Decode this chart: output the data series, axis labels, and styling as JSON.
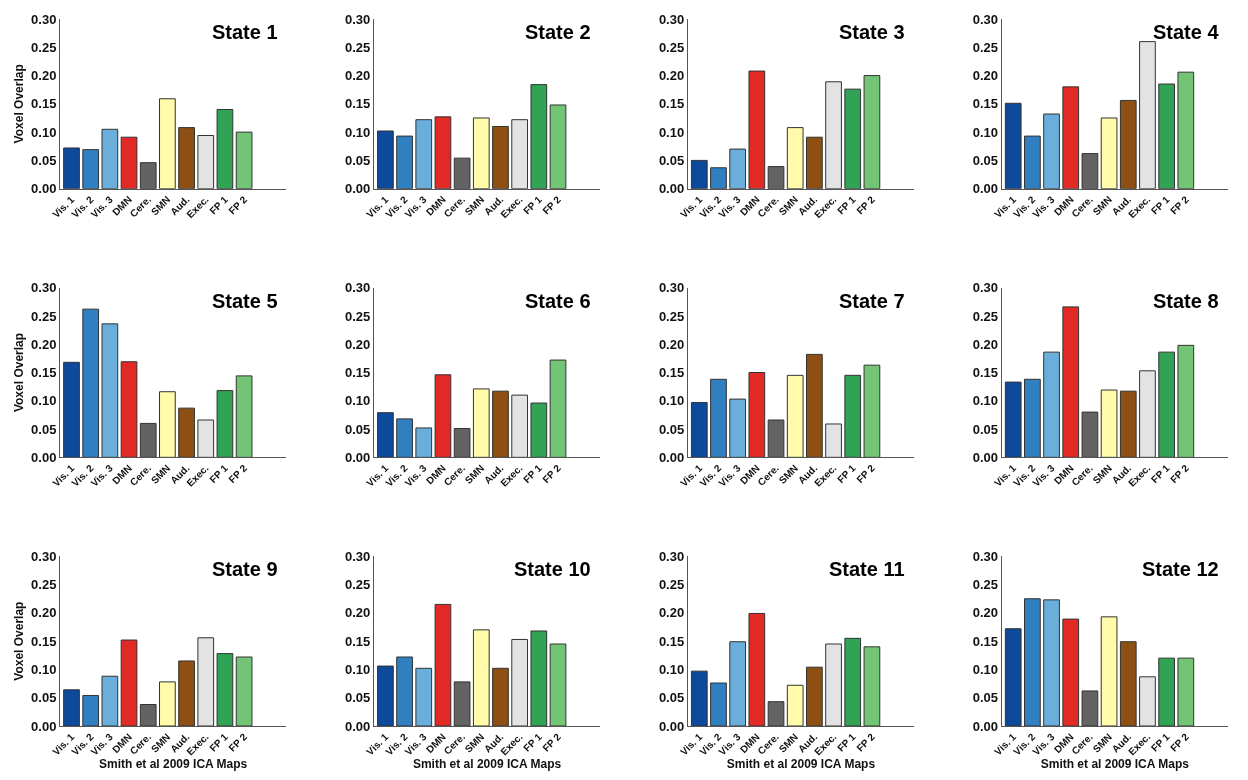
{
  "chart_data": [
    {
      "type": "bar",
      "title": "State 1",
      "ylabel": "Voxel Overlap",
      "categories": [
        "Vis. 1",
        "Vis. 2",
        "Vis. 3",
        "DMN",
        "Cere.",
        "SMN",
        "Aud.",
        "Exec.",
        "FP 1",
        "FP 2"
      ],
      "values": [
        0.072,
        0.069,
        0.105,
        0.091,
        0.046,
        0.159,
        0.108,
        0.094,
        0.14,
        0.1
      ],
      "colors": [
        "#0d4a9b",
        "#2f7fc1",
        "#6aaedc",
        "#e12a26",
        "#636363",
        "#fffbaa",
        "#8d4f12",
        "#e3e3e3",
        "#31a354",
        "#74c476"
      ],
      "ylim": [
        0,
        0.3
      ],
      "yticks": [
        {
          "value": 0,
          "label": "0.00"
        },
        {
          "value": 0.05,
          "label": "0.05"
        },
        {
          "value": 0.1,
          "label": "0.10"
        },
        {
          "value": 0.15,
          "label": "0.15"
        },
        {
          "value": 0.2,
          "label": "0.20"
        },
        {
          "value": 0.25,
          "label": "0.25"
        },
        {
          "value": 0.3,
          "label": "0.30"
        }
      ]
    },
    {
      "type": "bar",
      "title": "State 2",
      "categories": [
        "Vis. 1",
        "Vis. 2",
        "Vis. 3",
        "DMN",
        "Cere.",
        "SMN",
        "Aud.",
        "Exec.",
        "FP 1",
        "FP 2"
      ],
      "values": [
        0.102,
        0.093,
        0.122,
        0.127,
        0.054,
        0.125,
        0.11,
        0.122,
        0.184,
        0.148
      ],
      "colors": [
        "#0d4a9b",
        "#2f7fc1",
        "#6aaedc",
        "#e12a26",
        "#636363",
        "#fffbaa",
        "#8d4f12",
        "#e3e3e3",
        "#31a354",
        "#74c476"
      ],
      "ylim": [
        0,
        0.3
      ],
      "yticks": [
        {
          "value": 0,
          "label": "0.00"
        },
        {
          "value": 0.05,
          "label": "0.05"
        },
        {
          "value": 0.1,
          "label": "0.10"
        },
        {
          "value": 0.15,
          "label": "0.15"
        },
        {
          "value": 0.2,
          "label": "0.20"
        },
        {
          "value": 0.25,
          "label": "0.25"
        },
        {
          "value": 0.3,
          "label": "0.30"
        }
      ]
    },
    {
      "type": "bar",
      "title": "State 3",
      "categories": [
        "Vis. 1",
        "Vis. 2",
        "Vis. 3",
        "DMN",
        "Cere.",
        "SMN",
        "Aud.",
        "Exec.",
        "FP 1",
        "FP 2"
      ],
      "values": [
        0.05,
        0.037,
        0.07,
        0.208,
        0.039,
        0.108,
        0.091,
        0.189,
        0.176,
        0.2
      ],
      "colors": [
        "#0d4a9b",
        "#2f7fc1",
        "#6aaedc",
        "#e12a26",
        "#636363",
        "#fffbaa",
        "#8d4f12",
        "#e3e3e3",
        "#31a354",
        "#74c476"
      ],
      "ylim": [
        0,
        0.3
      ],
      "yticks": [
        {
          "value": 0,
          "label": "0.00"
        },
        {
          "value": 0.05,
          "label": "0.05"
        },
        {
          "value": 0.1,
          "label": "0.10"
        },
        {
          "value": 0.15,
          "label": "0.15"
        },
        {
          "value": 0.2,
          "label": "0.20"
        },
        {
          "value": 0.25,
          "label": "0.25"
        },
        {
          "value": 0.3,
          "label": "0.30"
        }
      ]
    },
    {
      "type": "bar",
      "title": "State 4",
      "categories": [
        "Vis. 1",
        "Vis. 2",
        "Vis. 3",
        "DMN",
        "Cere.",
        "SMN",
        "Aud.",
        "Exec.",
        "FP 1",
        "FP 2"
      ],
      "values": [
        0.151,
        0.093,
        0.132,
        0.18,
        0.062,
        0.125,
        0.156,
        0.26,
        0.185,
        0.206
      ],
      "colors": [
        "#0d4a9b",
        "#2f7fc1",
        "#6aaedc",
        "#e12a26",
        "#636363",
        "#fffbaa",
        "#8d4f12",
        "#e3e3e3",
        "#31a354",
        "#74c476"
      ],
      "ylim": [
        0,
        0.3
      ],
      "yticks": [
        {
          "value": 0,
          "label": "0.00"
        },
        {
          "value": 0.05,
          "label": "0.05"
        },
        {
          "value": 0.1,
          "label": "0.10"
        },
        {
          "value": 0.15,
          "label": "0.15"
        },
        {
          "value": 0.2,
          "label": "0.20"
        },
        {
          "value": 0.25,
          "label": "0.25"
        },
        {
          "value": 0.3,
          "label": "0.30"
        }
      ]
    },
    {
      "type": "bar",
      "title": "State 5",
      "ylabel": "Voxel Overlap",
      "categories": [
        "Vis. 1",
        "Vis. 2",
        "Vis. 3",
        "DMN",
        "Cere.",
        "SMN",
        "Aud.",
        "Exec.",
        "FP 1",
        "FP 2"
      ],
      "values": [
        0.168,
        0.262,
        0.236,
        0.169,
        0.06,
        0.116,
        0.087,
        0.066,
        0.118,
        0.144
      ],
      "colors": [
        "#0d4a9b",
        "#2f7fc1",
        "#6aaedc",
        "#e12a26",
        "#636363",
        "#fffbaa",
        "#8d4f12",
        "#e3e3e3",
        "#31a354",
        "#74c476"
      ],
      "ylim": [
        0,
        0.3
      ],
      "yticks": [
        {
          "value": 0,
          "label": "0.00"
        },
        {
          "value": 0.05,
          "label": "0.05"
        },
        {
          "value": 0.1,
          "label": "0.10"
        },
        {
          "value": 0.15,
          "label": "0.15"
        },
        {
          "value": 0.2,
          "label": "0.20"
        },
        {
          "value": 0.25,
          "label": "0.25"
        },
        {
          "value": 0.3,
          "label": "0.30"
        }
      ]
    },
    {
      "type": "bar",
      "title": "State 6",
      "categories": [
        "Vis. 1",
        "Vis. 2",
        "Vis. 3",
        "DMN",
        "Cere.",
        "SMN",
        "Aud.",
        "Exec.",
        "FP 1",
        "FP 2"
      ],
      "values": [
        0.079,
        0.068,
        0.052,
        0.146,
        0.051,
        0.121,
        0.117,
        0.11,
        0.096,
        0.172
      ],
      "colors": [
        "#0d4a9b",
        "#2f7fc1",
        "#6aaedc",
        "#e12a26",
        "#636363",
        "#fffbaa",
        "#8d4f12",
        "#e3e3e3",
        "#31a354",
        "#74c476"
      ],
      "ylim": [
        0,
        0.3
      ],
      "yticks": [
        {
          "value": 0,
          "label": "0.00"
        },
        {
          "value": 0.05,
          "label": "0.05"
        },
        {
          "value": 0.1,
          "label": "0.10"
        },
        {
          "value": 0.15,
          "label": "0.15"
        },
        {
          "value": 0.2,
          "label": "0.20"
        },
        {
          "value": 0.25,
          "label": "0.25"
        },
        {
          "value": 0.3,
          "label": "0.30"
        }
      ]
    },
    {
      "type": "bar",
      "title": "State 7",
      "categories": [
        "Vis. 1",
        "Vis. 2",
        "Vis. 3",
        "DMN",
        "Cere.",
        "SMN",
        "Aud.",
        "Exec.",
        "FP 1",
        "FP 2"
      ],
      "values": [
        0.097,
        0.138,
        0.103,
        0.15,
        0.066,
        0.145,
        0.182,
        0.059,
        0.145,
        0.163
      ],
      "colors": [
        "#0d4a9b",
        "#2f7fc1",
        "#6aaedc",
        "#e12a26",
        "#636363",
        "#fffbaa",
        "#8d4f12",
        "#e3e3e3",
        "#31a354",
        "#74c476"
      ],
      "ylim": [
        0,
        0.3
      ],
      "yticks": [
        {
          "value": 0,
          "label": "0.00"
        },
        {
          "value": 0.05,
          "label": "0.05"
        },
        {
          "value": 0.1,
          "label": "0.10"
        },
        {
          "value": 0.15,
          "label": "0.15"
        },
        {
          "value": 0.2,
          "label": "0.20"
        },
        {
          "value": 0.25,
          "label": "0.25"
        },
        {
          "value": 0.3,
          "label": "0.30"
        }
      ]
    },
    {
      "type": "bar",
      "title": "State 8",
      "categories": [
        "Vis. 1",
        "Vis. 2",
        "Vis. 3",
        "DMN",
        "Cere.",
        "SMN",
        "Aud.",
        "Exec.",
        "FP 1",
        "FP 2"
      ],
      "values": [
        0.133,
        0.138,
        0.186,
        0.266,
        0.08,
        0.119,
        0.117,
        0.153,
        0.186,
        0.198
      ],
      "colors": [
        "#0d4a9b",
        "#2f7fc1",
        "#6aaedc",
        "#e12a26",
        "#636363",
        "#fffbaa",
        "#8d4f12",
        "#e3e3e3",
        "#31a354",
        "#74c476"
      ],
      "ylim": [
        0,
        0.3
      ],
      "yticks": [
        {
          "value": 0,
          "label": "0.00"
        },
        {
          "value": 0.05,
          "label": "0.05"
        },
        {
          "value": 0.1,
          "label": "0.10"
        },
        {
          "value": 0.15,
          "label": "0.15"
        },
        {
          "value": 0.2,
          "label": "0.20"
        },
        {
          "value": 0.25,
          "label": "0.25"
        },
        {
          "value": 0.3,
          "label": "0.30"
        }
      ]
    },
    {
      "type": "bar",
      "title": "State 9",
      "ylabel": "Voxel Overlap",
      "xlabel": "Smith et al 2009 ICA Maps",
      "categories": [
        "Vis. 1",
        "Vis. 2",
        "Vis. 3",
        "DMN",
        "Cere.",
        "SMN",
        "Aud.",
        "Exec.",
        "FP 1",
        "FP 2"
      ],
      "values": [
        0.064,
        0.054,
        0.088,
        0.152,
        0.038,
        0.078,
        0.115,
        0.156,
        0.128,
        0.122
      ],
      "colors": [
        "#0d4a9b",
        "#2f7fc1",
        "#6aaedc",
        "#e12a26",
        "#636363",
        "#fffbaa",
        "#8d4f12",
        "#e3e3e3",
        "#31a354",
        "#74c476"
      ],
      "ylim": [
        0,
        0.3
      ],
      "yticks": [
        {
          "value": 0,
          "label": "0.00"
        },
        {
          "value": 0.05,
          "label": "0.05"
        },
        {
          "value": 0.1,
          "label": "0.10"
        },
        {
          "value": 0.15,
          "label": "0.15"
        },
        {
          "value": 0.2,
          "label": "0.20"
        },
        {
          "value": 0.25,
          "label": "0.25"
        },
        {
          "value": 0.3,
          "label": "0.30"
        }
      ]
    },
    {
      "type": "bar",
      "title": "State 10",
      "xlabel": "Smith et al 2009 ICA Maps",
      "categories": [
        "Vis. 1",
        "Vis. 2",
        "Vis. 3",
        "DMN",
        "Cere.",
        "SMN",
        "Aud.",
        "Exec.",
        "FP 1",
        "FP 2"
      ],
      "values": [
        0.106,
        0.122,
        0.102,
        0.215,
        0.078,
        0.17,
        0.102,
        0.153,
        0.168,
        0.145
      ],
      "colors": [
        "#0d4a9b",
        "#2f7fc1",
        "#6aaedc",
        "#e12a26",
        "#636363",
        "#fffbaa",
        "#8d4f12",
        "#e3e3e3",
        "#31a354",
        "#74c476"
      ],
      "ylim": [
        0,
        0.3
      ],
      "yticks": [
        {
          "value": 0,
          "label": "0.00"
        },
        {
          "value": 0.05,
          "label": "0.05"
        },
        {
          "value": 0.1,
          "label": "0.10"
        },
        {
          "value": 0.15,
          "label": "0.15"
        },
        {
          "value": 0.2,
          "label": "0.20"
        },
        {
          "value": 0.25,
          "label": "0.25"
        },
        {
          "value": 0.3,
          "label": "0.30"
        }
      ]
    },
    {
      "type": "bar",
      "title": "State 11",
      "xlabel": "Smith et al 2009 ICA Maps",
      "categories": [
        "Vis. 1",
        "Vis. 2",
        "Vis. 3",
        "DMN",
        "Cere.",
        "SMN",
        "Aud.",
        "Exec.",
        "FP 1",
        "FP 2"
      ],
      "values": [
        0.097,
        0.076,
        0.149,
        0.199,
        0.043,
        0.072,
        0.104,
        0.145,
        0.155,
        0.14
      ],
      "colors": [
        "#0d4a9b",
        "#2f7fc1",
        "#6aaedc",
        "#e12a26",
        "#636363",
        "#fffbaa",
        "#8d4f12",
        "#e3e3e3",
        "#31a354",
        "#74c476"
      ],
      "ylim": [
        0,
        0.3
      ],
      "yticks": [
        {
          "value": 0,
          "label": "0.00"
        },
        {
          "value": 0.05,
          "label": "0.05"
        },
        {
          "value": 0.1,
          "label": "0.10"
        },
        {
          "value": 0.15,
          "label": "0.15"
        },
        {
          "value": 0.2,
          "label": "0.20"
        },
        {
          "value": 0.25,
          "label": "0.25"
        },
        {
          "value": 0.3,
          "label": "0.30"
        }
      ]
    },
    {
      "type": "bar",
      "title": "State 12",
      "xlabel": "Smith et al 2009 ICA Maps",
      "categories": [
        "Vis. 1",
        "Vis. 2",
        "Vis. 3",
        "DMN",
        "Cere.",
        "SMN",
        "Aud.",
        "Exec.",
        "FP 1",
        "FP 2"
      ],
      "values": [
        0.172,
        0.225,
        0.223,
        0.189,
        0.062,
        0.193,
        0.149,
        0.087,
        0.12,
        0.12
      ],
      "colors": [
        "#0d4a9b",
        "#2f7fc1",
        "#6aaedc",
        "#e12a26",
        "#636363",
        "#fffbaa",
        "#8d4f12",
        "#e3e3e3",
        "#31a354",
        "#74c476"
      ],
      "ylim": [
        0,
        0.3
      ],
      "yticks": [
        {
          "value": 0,
          "label": "0.00"
        },
        {
          "value": 0.05,
          "label": "0.05"
        },
        {
          "value": 0.1,
          "label": "0.10"
        },
        {
          "value": 0.15,
          "label": "0.15"
        },
        {
          "value": 0.2,
          "label": "0.20"
        },
        {
          "value": 0.25,
          "label": "0.25"
        },
        {
          "value": 0.3,
          "label": "0.30"
        }
      ]
    }
  ]
}
